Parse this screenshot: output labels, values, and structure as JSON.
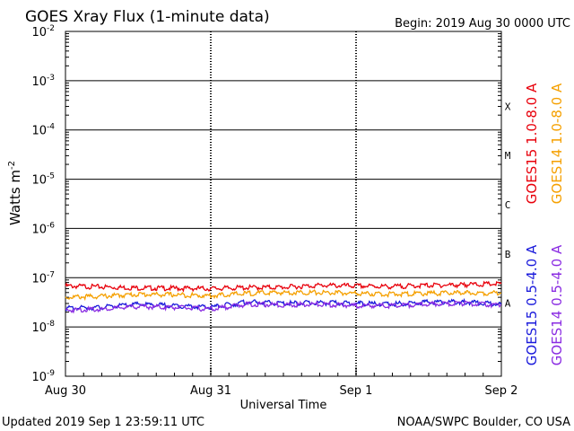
{
  "chart_data": {
    "type": "line",
    "title": "GOES Xray Flux (1-minute data)",
    "begin_label": "Begin:  2019 Aug 30 0000 UTC",
    "ylabel": "Watts m",
    "ylabel_superscript": "-2",
    "xlabel": "Universal Time",
    "y_scale": "log",
    "ylim": [
      1e-09,
      0.01
    ],
    "y_ticks": [
      {
        "base": "10",
        "exp": "-2"
      },
      {
        "base": "10",
        "exp": "-3"
      },
      {
        "base": "10",
        "exp": "-4"
      },
      {
        "base": "10",
        "exp": "-5"
      },
      {
        "base": "10",
        "exp": "-6"
      },
      {
        "base": "10",
        "exp": "-7"
      },
      {
        "base": "10",
        "exp": "-8"
      },
      {
        "base": "10",
        "exp": "-9"
      }
    ],
    "x_ticks": [
      "Aug 30",
      "Aug 31",
      "Sep 1",
      "Sep 2"
    ],
    "xlim": [
      "2019-08-30",
      "2019-09-02"
    ],
    "flare_classes": [
      "X",
      "M",
      "C",
      "B",
      "A"
    ],
    "grid": true,
    "legend_placement": "right",
    "x": [
      "2019-08-30 00:00",
      "2019-08-30 06:00",
      "2019-08-30 12:00",
      "2019-08-30 18:00",
      "2019-08-31 00:00",
      "2019-08-31 06:00",
      "2019-08-31 12:00",
      "2019-08-31 18:00",
      "2019-09-01 00:00",
      "2019-09-01 06:00",
      "2019-09-01 12:00",
      "2019-09-01 18:00",
      "2019-09-01 23:59"
    ],
    "series": [
      {
        "name": "GOES15 1.0-8.0 A",
        "color": "#e8000b",
        "values": [
          6.8e-08,
          6.5e-08,
          6.2e-08,
          6.1e-08,
          6e-08,
          6.3e-08,
          6.4e-08,
          7e-08,
          6.8e-08,
          6.6e-08,
          7e-08,
          7.2e-08,
          7.5e-08
        ]
      },
      {
        "name": "GOES14 1.0-8.0 A",
        "color": "#f5a000",
        "values": [
          4e-08,
          4.2e-08,
          4.6e-08,
          4.5e-08,
          4.3e-08,
          4.8e-08,
          5e-08,
          5e-08,
          4.8e-08,
          4.6e-08,
          4.8e-08,
          4.9e-08,
          4.9e-08
        ]
      },
      {
        "name": "GOES15 0.5-4.0 A",
        "color": "#1a1adb",
        "values": [
          2.4e-08,
          2.5e-08,
          2.9e-08,
          2.7e-08,
          2.5e-08,
          3.2e-08,
          3e-08,
          3.1e-08,
          3e-08,
          2.9e-08,
          3.2e-08,
          3.2e-08,
          2.9e-08
        ]
      },
      {
        "name": "GOES14 0.5-4.0 A",
        "color": "#8a2be2",
        "values": [
          2.2e-08,
          2.3e-08,
          2.6e-08,
          2.5e-08,
          2.3e-08,
          2.9e-08,
          2.8e-08,
          2.9e-08,
          2.7e-08,
          2.7e-08,
          2.9e-08,
          3e-08,
          2.8e-08
        ]
      }
    ]
  },
  "footer": {
    "updated": "Updated 2019 Sep  1 23:59:11 UTC",
    "credit": "NOAA/SWPC Boulder, CO USA"
  }
}
